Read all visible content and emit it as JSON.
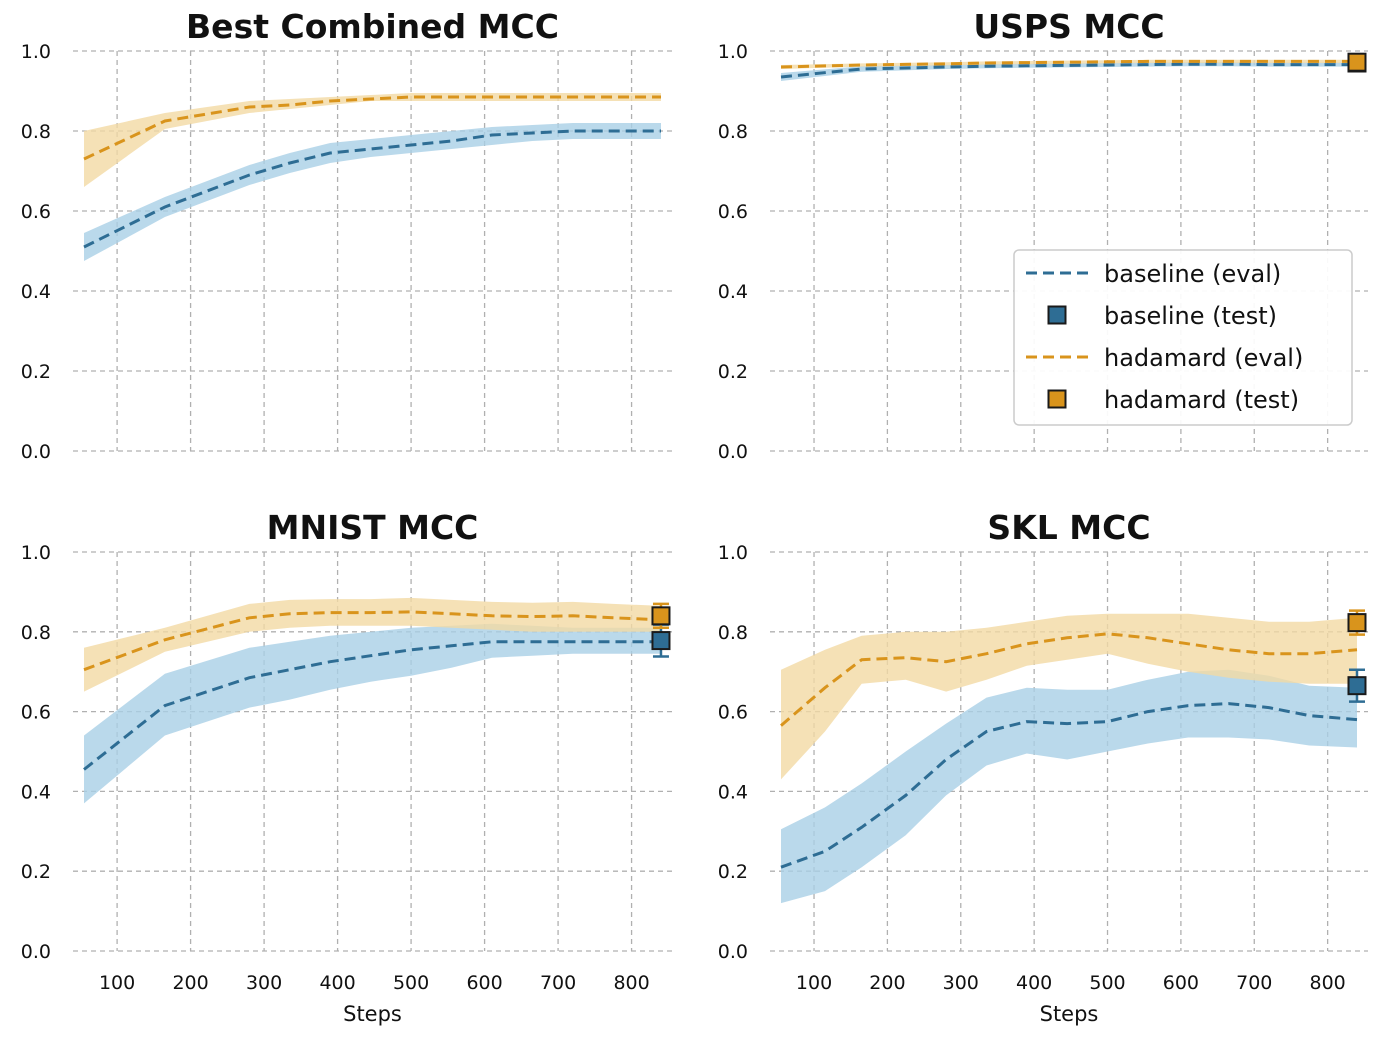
{
  "colors": {
    "baseline": "#2e6d94",
    "baseline_band": "#a9cfe6",
    "hadamard": "#d9941c",
    "hadamard_band": "#f3d9a4",
    "marker_edge": "#1a1a1a"
  },
  "legend": {
    "entries": [
      {
        "label": "baseline (eval)",
        "kind": "line",
        "series": "baseline"
      },
      {
        "label": "baseline (test)",
        "kind": "marker",
        "series": "baseline"
      },
      {
        "label": "hadamard (eval)",
        "kind": "line",
        "series": "hadamard"
      },
      {
        "label": "hadamard (test)",
        "kind": "marker",
        "series": "hadamard"
      }
    ]
  },
  "chart_data": [
    {
      "type": "line",
      "title": "Best Combined MCC",
      "xlabel": "",
      "ylabel": "",
      "xlim": [
        40,
        855
      ],
      "ylim": [
        0,
        1
      ],
      "xticks": [
        100,
        200,
        300,
        400,
        500,
        600,
        700,
        800
      ],
      "show_xticklabels": false,
      "yticks": [
        "0.0",
        "0.2",
        "0.4",
        "0.6",
        "0.8",
        "1.0"
      ],
      "grid": true,
      "legend": "none",
      "x": [
        55,
        165,
        280,
        335,
        390,
        445,
        500,
        555,
        610,
        665,
        720,
        775,
        840
      ],
      "series": [
        {
          "name": "baseline (eval)",
          "key": "baseline",
          "values": [
            0.51,
            0.61,
            0.69,
            0.72,
            0.745,
            0.755,
            0.765,
            0.775,
            0.79,
            0.795,
            0.8,
            0.8,
            0.8
          ],
          "lower": [
            0.475,
            0.585,
            0.665,
            0.695,
            0.72,
            0.735,
            0.745,
            0.755,
            0.765,
            0.775,
            0.78,
            0.78,
            0.78
          ],
          "upper": [
            0.545,
            0.635,
            0.715,
            0.745,
            0.77,
            0.78,
            0.79,
            0.8,
            0.81,
            0.815,
            0.82,
            0.82,
            0.82
          ]
        },
        {
          "name": "hadamard (eval)",
          "key": "hadamard",
          "values": [
            0.73,
            0.825,
            0.86,
            0.865,
            0.875,
            0.88,
            0.885,
            0.885,
            0.885,
            0.885,
            0.885,
            0.885,
            0.885
          ],
          "lower": [
            0.66,
            0.805,
            0.845,
            0.855,
            0.865,
            0.875,
            0.875,
            0.875,
            0.875,
            0.875,
            0.875,
            0.875,
            0.875
          ],
          "upper": [
            0.8,
            0.845,
            0.875,
            0.88,
            0.885,
            0.89,
            0.895,
            0.895,
            0.895,
            0.895,
            0.895,
            0.895,
            0.895
          ]
        }
      ],
      "test_points": []
    },
    {
      "type": "line",
      "title": "USPS MCC",
      "xlabel": "",
      "ylabel": "",
      "xlim": [
        40,
        855
      ],
      "ylim": [
        0,
        1
      ],
      "xticks": [
        100,
        200,
        300,
        400,
        500,
        600,
        700,
        800
      ],
      "show_xticklabels": false,
      "yticks": [
        "0.0",
        "0.2",
        "0.4",
        "0.6",
        "0.8",
        "1.0"
      ],
      "grid": true,
      "legend": "center-right",
      "x": [
        55,
        165,
        280,
        335,
        390,
        445,
        500,
        555,
        610,
        665,
        720,
        775,
        840
      ],
      "series": [
        {
          "name": "baseline (eval)",
          "key": "baseline",
          "values": [
            0.935,
            0.955,
            0.96,
            0.962,
            0.963,
            0.964,
            0.965,
            0.966,
            0.967,
            0.967,
            0.966,
            0.966,
            0.966
          ],
          "lower": [
            0.925,
            0.948,
            0.955,
            0.957,
            0.958,
            0.959,
            0.96,
            0.961,
            0.962,
            0.962,
            0.961,
            0.961,
            0.961
          ],
          "upper": [
            0.945,
            0.962,
            0.965,
            0.967,
            0.968,
            0.969,
            0.97,
            0.971,
            0.972,
            0.972,
            0.971,
            0.971,
            0.971
          ]
        },
        {
          "name": "hadamard (eval)",
          "key": "hadamard",
          "values": [
            0.96,
            0.965,
            0.968,
            0.97,
            0.971,
            0.972,
            0.973,
            0.974,
            0.974,
            0.974,
            0.974,
            0.974,
            0.974
          ],
          "lower": [
            0.955,
            0.961,
            0.964,
            0.966,
            0.967,
            0.968,
            0.969,
            0.97,
            0.97,
            0.97,
            0.97,
            0.97,
            0.97
          ],
          "upper": [
            0.965,
            0.969,
            0.972,
            0.974,
            0.975,
            0.976,
            0.977,
            0.978,
            0.978,
            0.978,
            0.978,
            0.978,
            0.978
          ]
        }
      ],
      "test_points": [
        {
          "series": "baseline",
          "x": 840,
          "y": 0.97,
          "err": 0.005
        },
        {
          "series": "hadamard",
          "x": 840,
          "y": 0.972,
          "err": 0.005
        }
      ]
    },
    {
      "type": "line",
      "title": "MNIST MCC",
      "xlabel": "Steps",
      "ylabel": "",
      "xlim": [
        40,
        855
      ],
      "ylim": [
        0,
        1
      ],
      "xticks": [
        100,
        200,
        300,
        400,
        500,
        600,
        700,
        800
      ],
      "show_xticklabels": true,
      "yticks": [
        "0.0",
        "0.2",
        "0.4",
        "0.6",
        "0.8",
        "1.0"
      ],
      "grid": true,
      "legend": "none",
      "x": [
        55,
        165,
        280,
        335,
        390,
        445,
        500,
        555,
        610,
        665,
        720,
        775,
        840
      ],
      "series": [
        {
          "name": "baseline (eval)",
          "key": "baseline",
          "values": [
            0.455,
            0.615,
            0.685,
            0.705,
            0.725,
            0.74,
            0.755,
            0.765,
            0.775,
            0.775,
            0.775,
            0.775,
            0.775
          ],
          "lower": [
            0.37,
            0.54,
            0.61,
            0.63,
            0.655,
            0.675,
            0.69,
            0.71,
            0.735,
            0.74,
            0.745,
            0.745,
            0.745
          ],
          "upper": [
            0.54,
            0.695,
            0.76,
            0.775,
            0.79,
            0.8,
            0.81,
            0.815,
            0.82,
            0.815,
            0.81,
            0.81,
            0.81
          ]
        },
        {
          "name": "hadamard (eval)",
          "key": "hadamard",
          "values": [
            0.705,
            0.78,
            0.835,
            0.845,
            0.848,
            0.848,
            0.85,
            0.845,
            0.84,
            0.838,
            0.84,
            0.835,
            0.83
          ],
          "lower": [
            0.65,
            0.75,
            0.8,
            0.81,
            0.815,
            0.815,
            0.815,
            0.81,
            0.805,
            0.8,
            0.8,
            0.8,
            0.8
          ],
          "upper": [
            0.76,
            0.81,
            0.87,
            0.88,
            0.882,
            0.882,
            0.885,
            0.88,
            0.875,
            0.873,
            0.875,
            0.87,
            0.865
          ]
        }
      ],
      "test_points": [
        {
          "series": "baseline",
          "x": 840,
          "y": 0.778,
          "err": 0.04
        },
        {
          "series": "hadamard",
          "x": 840,
          "y": 0.84,
          "err": 0.03
        }
      ]
    },
    {
      "type": "line",
      "title": "SKL MCC",
      "xlabel": "Steps",
      "ylabel": "",
      "xlim": [
        40,
        855
      ],
      "ylim": [
        0,
        1
      ],
      "xticks": [
        100,
        200,
        300,
        400,
        500,
        600,
        700,
        800
      ],
      "show_xticklabels": true,
      "yticks": [
        "0.0",
        "0.2",
        "0.4",
        "0.6",
        "0.8",
        "1.0"
      ],
      "grid": true,
      "legend": "none",
      "x": [
        55,
        115,
        165,
        225,
        280,
        335,
        390,
        445,
        500,
        555,
        610,
        665,
        720,
        775,
        840
      ],
      "series": [
        {
          "name": "baseline (eval)",
          "key": "baseline",
          "values": [
            0.21,
            0.25,
            0.31,
            0.39,
            0.48,
            0.55,
            0.575,
            0.57,
            0.575,
            0.6,
            0.615,
            0.62,
            0.61,
            0.59,
            0.58
          ],
          "lower": [
            0.12,
            0.15,
            0.21,
            0.29,
            0.39,
            0.465,
            0.495,
            0.48,
            0.5,
            0.52,
            0.535,
            0.535,
            0.53,
            0.515,
            0.51
          ],
          "upper": [
            0.305,
            0.36,
            0.42,
            0.5,
            0.57,
            0.635,
            0.66,
            0.655,
            0.655,
            0.68,
            0.7,
            0.705,
            0.69,
            0.665,
            0.66
          ]
        },
        {
          "name": "hadamard (eval)",
          "key": "hadamard",
          "values": [
            0.565,
            0.66,
            0.73,
            0.735,
            0.725,
            0.745,
            0.77,
            0.785,
            0.795,
            0.785,
            0.77,
            0.755,
            0.745,
            0.745,
            0.755
          ],
          "lower": [
            0.43,
            0.55,
            0.67,
            0.68,
            0.65,
            0.68,
            0.715,
            0.73,
            0.745,
            0.72,
            0.7,
            0.685,
            0.675,
            0.67,
            0.67
          ],
          "upper": [
            0.705,
            0.755,
            0.79,
            0.8,
            0.8,
            0.81,
            0.825,
            0.84,
            0.845,
            0.845,
            0.845,
            0.835,
            0.825,
            0.825,
            0.835
          ]
        }
      ],
      "test_points": [
        {
          "series": "baseline",
          "x": 840,
          "y": 0.665,
          "err": 0.04
        },
        {
          "series": "hadamard",
          "x": 840,
          "y": 0.823,
          "err": 0.03
        }
      ]
    }
  ]
}
